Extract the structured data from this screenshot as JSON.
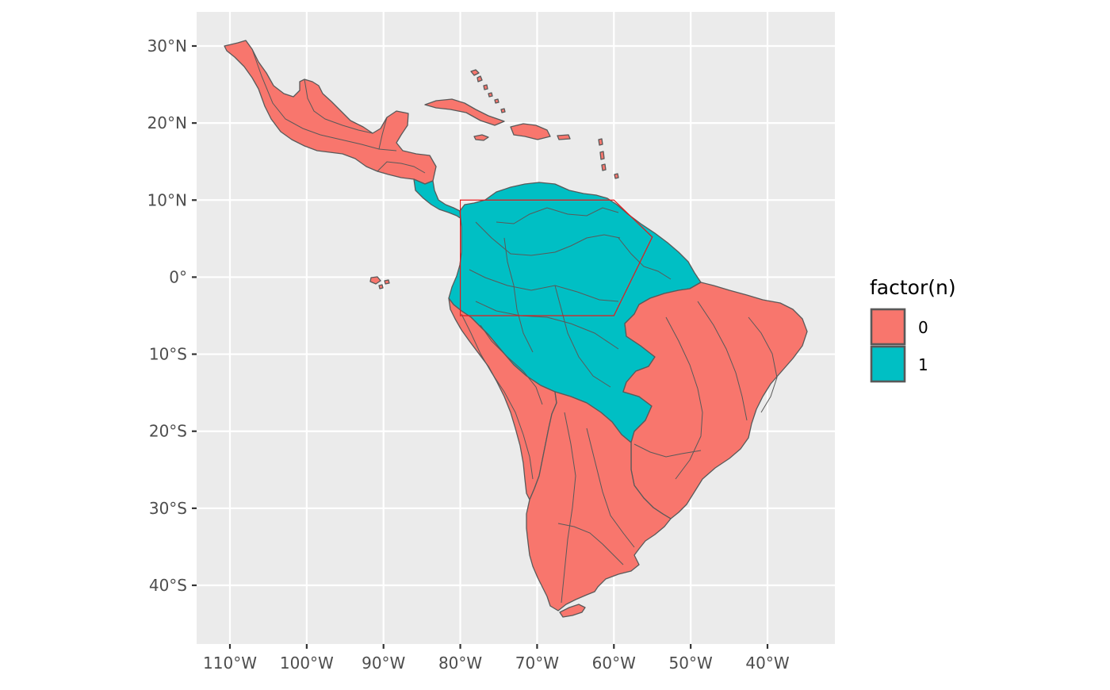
{
  "map": {
    "x_axis": {
      "range": [
        -115,
        -32
      ],
      "ticks": [
        -110,
        -100,
        -90,
        -80,
        -70,
        -60,
        -50,
        -40
      ],
      "tick_labels": [
        "110°W",
        "100°W",
        "90°W",
        "80°W",
        "70°W",
        "60°W",
        "50°W",
        "40°W"
      ]
    },
    "y_axis": {
      "range": [
        -47,
        35
      ],
      "ticks": [
        30,
        20,
        10,
        0,
        -10,
        -20,
        -30,
        -40
      ],
      "tick_labels": [
        "30°N",
        "20°N",
        "10°N",
        "0°",
        "10°S",
        "20°S",
        "30°S",
        "40°S"
      ]
    },
    "panel_background": "#ebebeb",
    "grid_color": "#ffffff",
    "fill_scale": {
      "0": "#f8766d",
      "1": "#00bfc4"
    },
    "outline_color": "#595959",
    "bounding_polygon": {
      "color": "#e31a1c",
      "points": [
        [
          -80,
          10
        ],
        [
          -60,
          10
        ],
        [
          -55,
          5.2
        ],
        [
          -60,
          -5
        ],
        [
          -80,
          -5
        ]
      ]
    }
  },
  "legend": {
    "title": "factor(n)",
    "items": [
      {
        "label": "0",
        "color": "#f8766d"
      },
      {
        "label": "1",
        "color": "#00bfc4"
      }
    ]
  },
  "regions": [
    {
      "name": "mexico-central-america-north",
      "n": 0
    },
    {
      "name": "central-america-south",
      "n": 1
    },
    {
      "name": "caribbean-islands",
      "n": 0
    },
    {
      "name": "galapagos",
      "n": 0
    },
    {
      "name": "amazon-northern-south-america",
      "n": 1
    },
    {
      "name": "andes-pacific-coast",
      "n": 0
    },
    {
      "name": "brazil-east",
      "n": 0
    },
    {
      "name": "southern-cone",
      "n": 0
    },
    {
      "name": "tierra-del-fuego",
      "n": 0
    }
  ]
}
